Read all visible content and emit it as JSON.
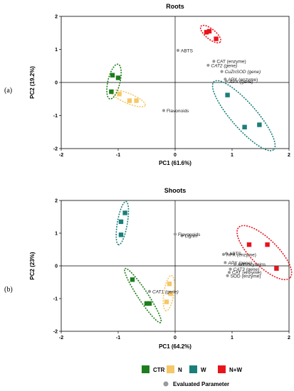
{
  "colors": {
    "CTR": "#1e7d1e",
    "N": "#f5c766",
    "W": "#1a7f7a",
    "N+W": "#e8141c",
    "param": "#999999"
  },
  "legend": {
    "items": [
      {
        "key": "CTR",
        "label": "CTR"
      },
      {
        "key": "N",
        "label": "N"
      },
      {
        "key": "W",
        "label": "W"
      },
      {
        "key": "N+W",
        "label": "N+W"
      }
    ],
    "param_label": "Evaluated Parameter"
  },
  "chart_data": [
    {
      "type": "scatter",
      "panel_label": "(a)",
      "title": "Roots",
      "xlabel": "PC1 (61.6%)",
      "ylabel": "PC2 (19.2%)",
      "xlim": [
        -2,
        2
      ],
      "ylim": [
        -2,
        2
      ],
      "xticks": [
        -2,
        -1,
        0,
        1,
        2
      ],
      "yticks": [
        -2,
        -1,
        0,
        1,
        2
      ],
      "series": [
        {
          "name": "CTR",
          "points": [
            [
              -1.1,
              0.22
            ],
            [
              -1.0,
              0.14
            ],
            [
              -1.12,
              -0.28
            ]
          ]
        },
        {
          "name": "N",
          "points": [
            [
              -0.98,
              -0.35
            ],
            [
              -0.8,
              -0.55
            ],
            [
              -0.68,
              -0.55
            ]
          ]
        },
        {
          "name": "W",
          "points": [
            [
              0.92,
              -0.38
            ],
            [
              1.22,
              -1.35
            ],
            [
              1.48,
              -1.28
            ]
          ]
        },
        {
          "name": "N+W",
          "points": [
            [
              0.55,
              1.52
            ],
            [
              0.6,
              1.55
            ],
            [
              0.72,
              1.32
            ]
          ]
        }
      ],
      "parameters": [
        {
          "label": "ABTS",
          "x": 0.05,
          "y": 0.97,
          "italic": false
        },
        {
          "label": "CAT (enzyme)",
          "x": 0.68,
          "y": 0.64,
          "italic": false
        },
        {
          "label": "CAT2 (gene)",
          "x": 0.58,
          "y": 0.52,
          "italic": true
        },
        {
          "label": "CuZnSOD (gene)",
          "x": 0.82,
          "y": 0.33,
          "italic": true
        },
        {
          "label": "APX (enzyme)",
          "x": 0.88,
          "y": 0.1,
          "italic": false
        },
        {
          "label": "APX (gene)",
          "x": 0.9,
          "y": 0.03,
          "italic": true
        },
        {
          "label": "Flavonoids",
          "x": -0.2,
          "y": -0.85,
          "italic": false
        }
      ]
    },
    {
      "type": "scatter",
      "panel_label": "(b)",
      "title": "Shoots",
      "xlabel": "PC1 (64.2%)",
      "ylabel": "PC2 (23%)",
      "xlim": [
        -2,
        2
      ],
      "ylim": [
        -2,
        2
      ],
      "xticks": [
        -2,
        -1,
        0,
        1,
        2
      ],
      "yticks": [
        -2,
        -1,
        0,
        1,
        2
      ],
      "series": [
        {
          "name": "CTR",
          "points": [
            [
              -0.75,
              -0.42
            ],
            [
              -0.5,
              -1.15
            ],
            [
              -0.45,
              -1.15
            ]
          ]
        },
        {
          "name": "N",
          "points": [
            [
              -0.1,
              -0.55
            ],
            [
              -0.08,
              -0.85
            ],
            [
              -0.15,
              -1.1
            ]
          ]
        },
        {
          "name": "W",
          "points": [
            [
              -0.88,
              1.62
            ],
            [
              -0.95,
              1.35
            ],
            [
              -0.95,
              0.95
            ]
          ]
        },
        {
          "name": "N+W",
          "points": [
            [
              1.3,
              0.65
            ],
            [
              1.62,
              0.65
            ],
            [
              1.78,
              -0.08
            ]
          ]
        }
      ],
      "parameters": [
        {
          "label": "Lignin",
          "x": 0.12,
          "y": 0.92,
          "italic": false
        },
        {
          "label": "Flavonoids",
          "x": 0.0,
          "y": 0.97,
          "italic": false
        },
        {
          "label": "ABTS",
          "x": 0.9,
          "y": 0.38,
          "italic": false
        },
        {
          "label": "APX (enzyme)",
          "x": 0.85,
          "y": 0.35,
          "italic": false
        },
        {
          "label": "APX (gene)",
          "x": 0.88,
          "y": 0.1,
          "italic": true
        },
        {
          "label": "Anthocyanins",
          "x": 1.05,
          "y": 0.05,
          "italic": false
        },
        {
          "label": "CAT3 (gene)",
          "x": 0.97,
          "y": -0.1,
          "italic": true
        },
        {
          "label": "CAT (enzyme)",
          "x": 0.95,
          "y": -0.2,
          "italic": false
        },
        {
          "label": "SOD (enzyme)",
          "x": 0.92,
          "y": -0.3,
          "italic": false
        },
        {
          "label": "CAT1 (gene)",
          "x": -0.45,
          "y": -0.78,
          "italic": true
        }
      ]
    }
  ]
}
